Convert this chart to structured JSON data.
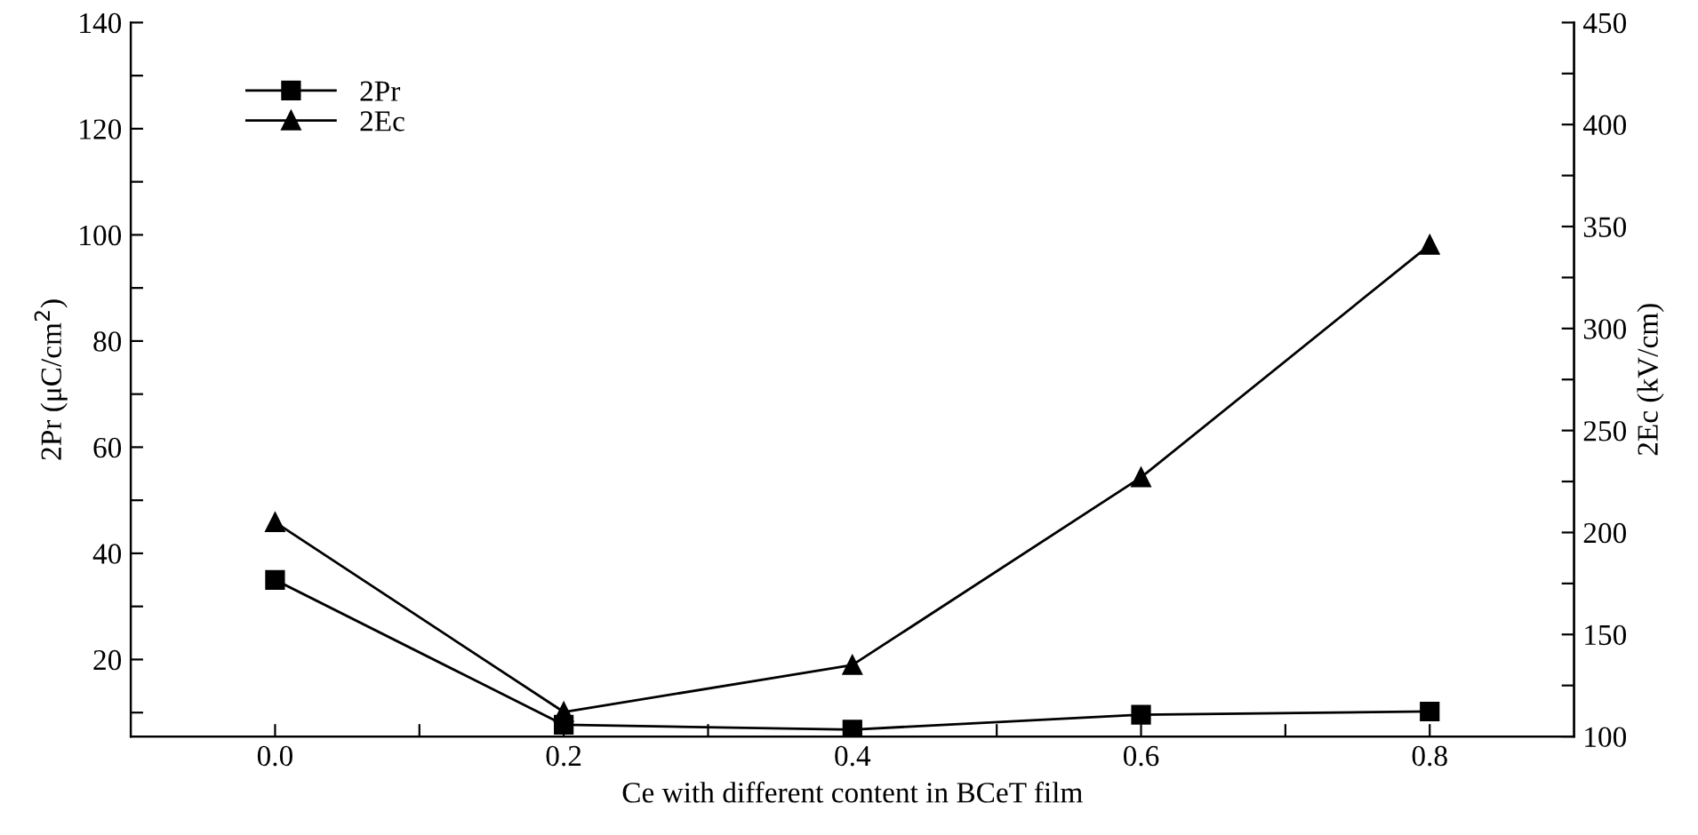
{
  "chart_data": {
    "type": "line",
    "xlabel": "Ce with different content in BCeT film",
    "ylabel": "2Pr (μC/cm$^{2}$)",
    "y2label": "2Ec (kV/cm)",
    "x": [
      0.0,
      0.2,
      0.4,
      0.6,
      0.8
    ],
    "series": [
      {
        "name": "2Pr",
        "color": "#000000",
        "marker": "square",
        "values": [
          35,
          7.7,
          6.8,
          9.6,
          10.2
        ]
      },
      {
        "name": "2Ec",
        "color": "#000000",
        "marker": "triangle",
        "axis": "y2",
        "values": [
          205,
          112,
          135,
          227,
          341
        ]
      }
    ],
    "xlim": [
      -0.1,
      0.9
    ],
    "xticks": [
      {
        "value": 0,
        "label": "0.0"
      },
      {
        "value": 0.1,
        "label": null
      },
      0.2,
      {
        "value": 0.3,
        "label": null
      },
      0.4,
      {
        "value": 0.5,
        "label": null
      },
      0.6,
      {
        "value": 0.7,
        "label": null
      },
      0.8
    ],
    "ylim": [
      5.5,
      140
    ],
    "yticks": [
      {
        "value": 10,
        "label": null
      },
      20,
      {
        "value": 30,
        "label": null
      },
      40,
      {
        "value": 50,
        "label": null
      },
      60,
      {
        "value": 70,
        "label": null
      },
      80,
      {
        "value": 90,
        "label": null
      },
      100,
      {
        "value": 110,
        "label": null
      },
      120,
      {
        "value": 130,
        "label": null
      },
      140
    ],
    "y2lim": [
      100,
      450
    ],
    "y2ticks": [
      100,
      {
        "value": 125,
        "label": null
      },
      150,
      {
        "value": 175,
        "label": null
      },
      200,
      {
        "value": 225,
        "label": null
      },
      250,
      {
        "value": 275,
        "label": null
      },
      300,
      {
        "value": 325,
        "label": null
      },
      350,
      {
        "value": 375,
        "label": null
      },
      400,
      {
        "value": 425,
        "label": null
      },
      450
    ],
    "legend": "top left",
    "grid": false,
    "line_style": "solid"
  }
}
